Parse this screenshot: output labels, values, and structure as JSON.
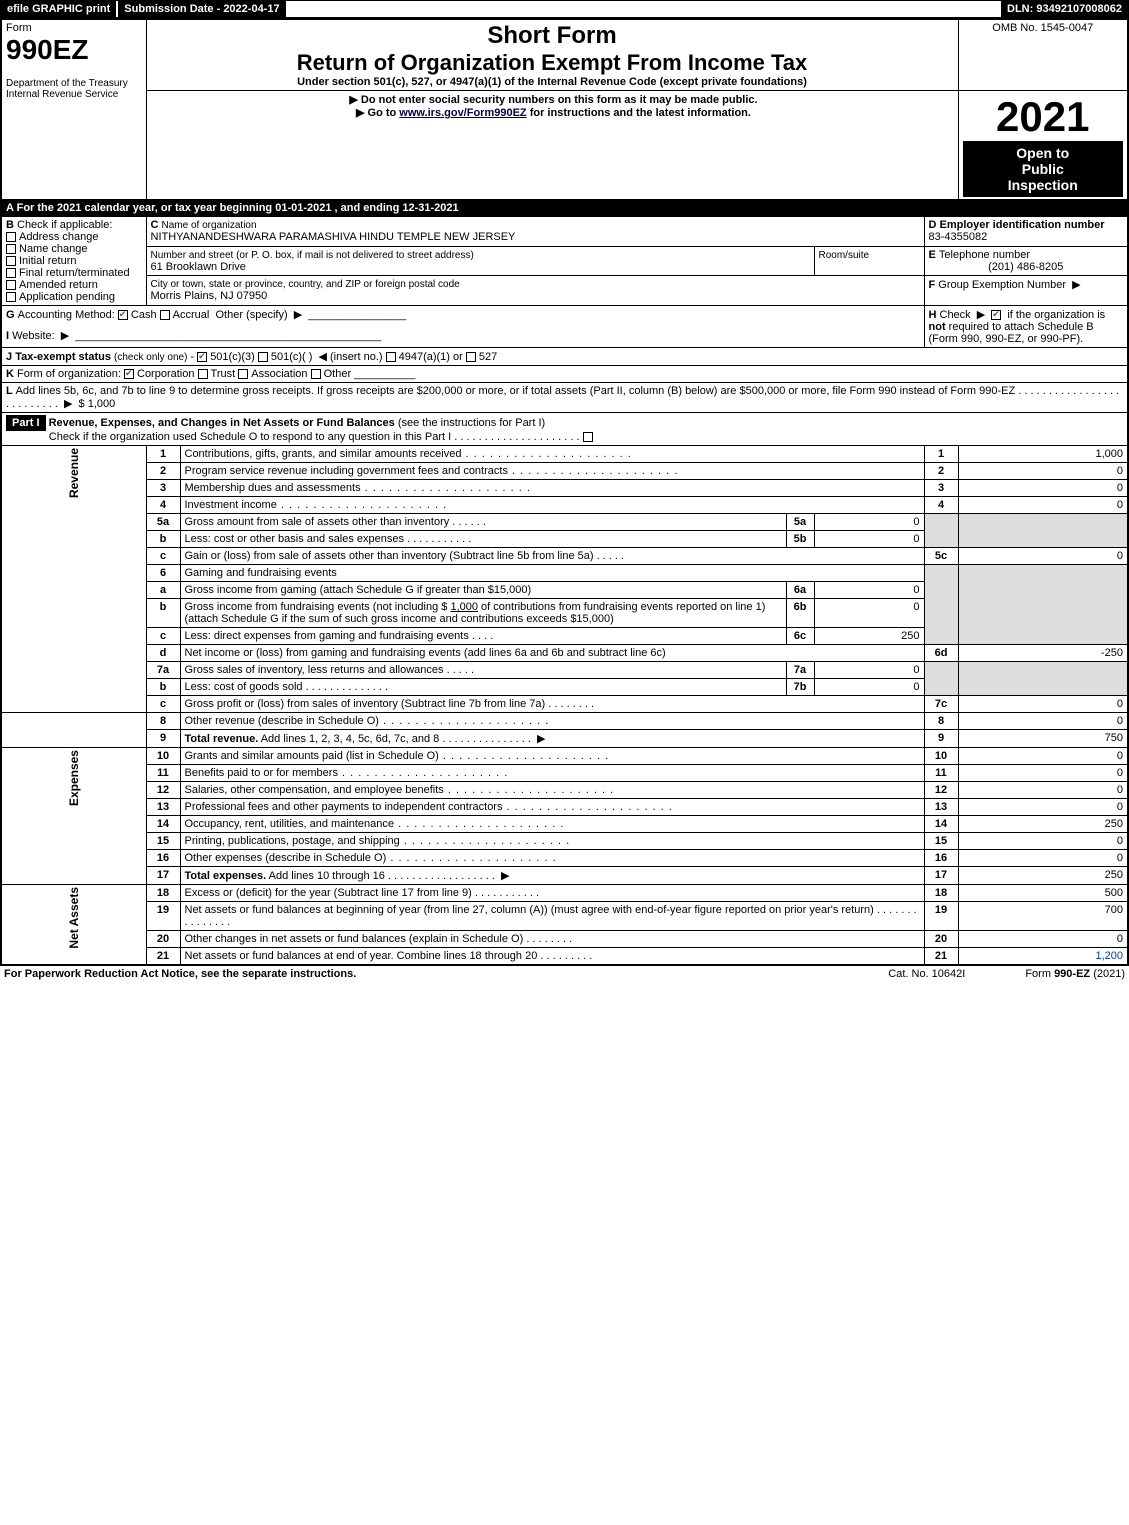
{
  "topbar": {
    "efile": "efile GRAPHIC print",
    "submission": "Submission Date - 2022-04-17",
    "dln": "DLN: 93492107008062"
  },
  "header": {
    "form_word": "Form",
    "form_number": "990EZ",
    "dept1": "Department of the Treasury",
    "dept2": "Internal Revenue Service",
    "short_form": "Short Form",
    "title": "Return of Organization Exempt From Income Tax",
    "under": "Under section 501(c), 527, or 4947(a)(1) of the Internal Revenue Code (except private foundations)",
    "warn": "Do not enter social security numbers on this form as it may be made public.",
    "goto_pre": "Go to ",
    "goto_link": "www.irs.gov/Form990EZ",
    "goto_post": " for instructions and the latest information.",
    "omb": "OMB No. 1545-0047",
    "year": "2021",
    "open1": "Open to",
    "open2": "Public",
    "open3": "Inspection"
  },
  "A": {
    "text_pre": "For the 2021 calendar year, or tax year beginning ",
    "begin": "01-01-2021",
    "mid": " , and ending ",
    "end": "12-31-2021"
  },
  "B": {
    "label": "Check if applicable:",
    "addr": "Address change",
    "name": "Name change",
    "init": "Initial return",
    "final": "Final return/terminated",
    "amend": "Amended return",
    "app": "Application pending"
  },
  "C": {
    "name_lbl": "Name of organization",
    "name": "NITHYANANDESHWARA PARAMASHIVA HINDU TEMPLE NEW JERSEY",
    "street_lbl": "Number and street (or P. O. box, if mail is not delivered to street address)",
    "street": "61 Brooklawn Drive",
    "room_lbl": "Room/suite",
    "city_lbl": "City or town, state or province, country, and ZIP or foreign postal code",
    "city": "Morris Plains, NJ  07950"
  },
  "D": {
    "lbl": "Employer identification number",
    "val": "83-4355082"
  },
  "E": {
    "lbl": "Telephone number",
    "val": "(201) 486-8205"
  },
  "F": {
    "lbl": "Group Exemption Number"
  },
  "G": {
    "lbl": "Accounting Method:",
    "cash": "Cash",
    "accr": "Accrual",
    "other": "Other (specify)"
  },
  "H": {
    "lbl": "Check",
    "text": "if the organization is ",
    "not": "not",
    "req": " required to attach Schedule B",
    "forms": "(Form 990, 990-EZ, or 990-PF)."
  },
  "I": {
    "lbl": "Website:"
  },
  "J": {
    "lbl": "Tax-exempt status",
    "note": "(check only one)",
    "c3": "501(c)(3)",
    "c": "501(c)(  )",
    "ins": "(insert no.)",
    "a1": "4947(a)(1) or",
    "s527": "527"
  },
  "K": {
    "lbl": "Form of organization:",
    "corp": "Corporation",
    "trust": "Trust",
    "assoc": "Association",
    "other": "Other"
  },
  "L": {
    "text": "Add lines 5b, 6c, and 7b to line 9 to determine gross receipts. If gross receipts are $200,000 or more, or if total assets (Part II, column (B) below) are $500,000 or more, file Form 990 instead of Form 990-EZ",
    "amt": "$ 1,000"
  },
  "partI": {
    "label": "Part I",
    "title": "Revenue, Expenses, and Changes in Net Assets or Fund Balances",
    "note": "(see the instructions for Part I)",
    "check": "Check if the organization used Schedule O to respond to any question in this Part I"
  },
  "lines": {
    "l1": {
      "n": "1",
      "t": "Contributions, gifts, grants, and similar amounts received",
      "box": "1",
      "amt": "1,000"
    },
    "l2": {
      "n": "2",
      "t": "Program service revenue including government fees and contracts",
      "box": "2",
      "amt": "0"
    },
    "l3": {
      "n": "3",
      "t": "Membership dues and assessments",
      "box": "3",
      "amt": "0"
    },
    "l4": {
      "n": "4",
      "t": "Investment income",
      "box": "4",
      "amt": "0"
    },
    "l5a": {
      "n": "5a",
      "t": "Gross amount from sale of assets other than inventory",
      "sub": "5a",
      "samt": "0"
    },
    "l5b": {
      "n": "b",
      "t": "Less: cost or other basis and sales expenses",
      "sub": "5b",
      "samt": "0"
    },
    "l5c": {
      "n": "c",
      "t": "Gain or (loss) from sale of assets other than inventory (Subtract line 5b from line 5a)",
      "box": "5c",
      "amt": "0"
    },
    "l6": {
      "n": "6",
      "t": "Gaming and fundraising events"
    },
    "l6a": {
      "n": "a",
      "t": "Gross income from gaming (attach Schedule G if greater than $15,000)",
      "sub": "6a",
      "samt": "0"
    },
    "l6b": {
      "n": "b",
      "t1": "Gross income from fundraising events (not including $ ",
      "amt_in": "1,000",
      "t2": " of contributions from fundraising events reported on line 1) (attach Schedule G if the sum of such gross income and contributions exceeds $15,000)",
      "sub": "6b",
      "samt": "0"
    },
    "l6c": {
      "n": "c",
      "t": "Less: direct expenses from gaming and fundraising events",
      "sub": "6c",
      "samt": "250"
    },
    "l6d": {
      "n": "d",
      "t": "Net income or (loss) from gaming and fundraising events (add lines 6a and 6b and subtract line 6c)",
      "box": "6d",
      "amt": "-250"
    },
    "l7a": {
      "n": "7a",
      "t": "Gross sales of inventory, less returns and allowances",
      "sub": "7a",
      "samt": "0"
    },
    "l7b": {
      "n": "b",
      "t": "Less: cost of goods sold",
      "sub": "7b",
      "samt": "0"
    },
    "l7c": {
      "n": "c",
      "t": "Gross profit or (loss) from sales of inventory (Subtract line 7b from line 7a)",
      "box": "7c",
      "amt": "0"
    },
    "l8": {
      "n": "8",
      "t": "Other revenue (describe in Schedule O)",
      "box": "8",
      "amt": "0"
    },
    "l9": {
      "n": "9",
      "t": "Total revenue.",
      "t2": " Add lines 1, 2, 3, 4, 5c, 6d, 7c, and 8",
      "box": "9",
      "amt": "750"
    },
    "l10": {
      "n": "10",
      "t": "Grants and similar amounts paid (list in Schedule O)",
      "box": "10",
      "amt": "0"
    },
    "l11": {
      "n": "11",
      "t": "Benefits paid to or for members",
      "box": "11",
      "amt": "0"
    },
    "l12": {
      "n": "12",
      "t": "Salaries, other compensation, and employee benefits",
      "box": "12",
      "amt": "0"
    },
    "l13": {
      "n": "13",
      "t": "Professional fees and other payments to independent contractors",
      "box": "13",
      "amt": "0"
    },
    "l14": {
      "n": "14",
      "t": "Occupancy, rent, utilities, and maintenance",
      "box": "14",
      "amt": "250"
    },
    "l15": {
      "n": "15",
      "t": "Printing, publications, postage, and shipping",
      "box": "15",
      "amt": "0"
    },
    "l16": {
      "n": "16",
      "t": "Other expenses (describe in Schedule O)",
      "box": "16",
      "amt": "0"
    },
    "l17": {
      "n": "17",
      "t": "Total expenses.",
      "t2": " Add lines 10 through 16",
      "box": "17",
      "amt": "250"
    },
    "l18": {
      "n": "18",
      "t": "Excess or (deficit) for the year (Subtract line 17 from line 9)",
      "box": "18",
      "amt": "500"
    },
    "l19": {
      "n": "19",
      "t": "Net assets or fund balances at beginning of year (from line 27, column (A)) (must agree with end-of-year figure reported on prior year's return)",
      "box": "19",
      "amt": "700"
    },
    "l20": {
      "n": "20",
      "t": "Other changes in net assets or fund balances (explain in Schedule O)",
      "box": "20",
      "amt": "0"
    },
    "l21": {
      "n": "21",
      "t": "Net assets or fund balances at end of year. Combine lines 18 through 20",
      "box": "21",
      "amt": "1,200"
    }
  },
  "vlabels": {
    "rev": "Revenue",
    "exp": "Expenses",
    "net": "Net Assets"
  },
  "footer": {
    "left": "For Paperwork Reduction Act Notice, see the separate instructions.",
    "mid": "Cat. No. 10642I",
    "right_pre": "Form ",
    "right_b": "990-EZ",
    "right_post": " (2021)"
  }
}
